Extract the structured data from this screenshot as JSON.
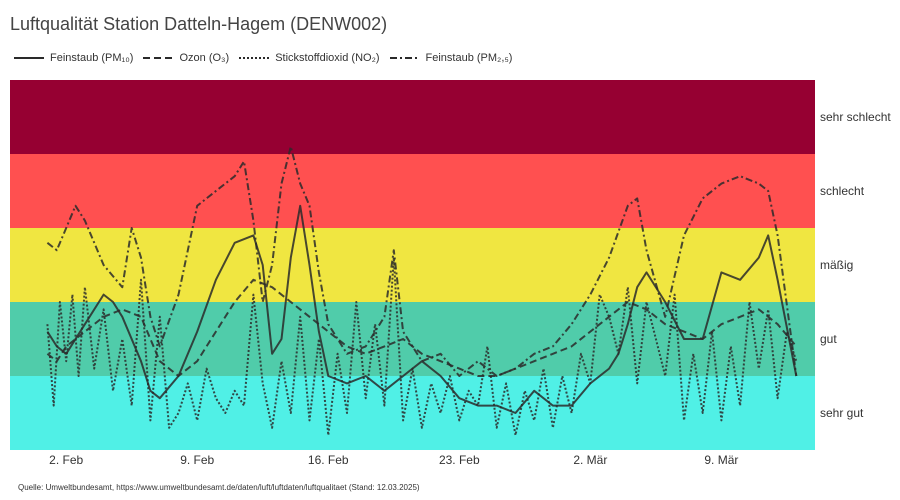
{
  "title": "Luftqualität Station Datteln-Hagem (DENW002)",
  "source": "Quelle: Umweltbundesamt, https://www.umweltbundesamt.de/daten/luft/luftdaten/luftqualitaet (Stand: 12.03.2025)",
  "chart_data": {
    "type": "line",
    "title": "Luftqualität Station Datteln-Hagem (DENW002)",
    "x_axis": {
      "start": "2025-01-30",
      "end": "2025-03-14",
      "tick_labels": [
        "2. Feb",
        "9. Feb",
        "16. Feb",
        "23. Feb",
        "2. Mär",
        "9. Mär"
      ],
      "tick_dates": [
        "2025-02-02",
        "2025-02-09",
        "2025-02-16",
        "2025-02-23",
        "2025-03-02",
        "2025-03-09"
      ]
    },
    "y_axis": {
      "type": "categorical-bands",
      "bands": [
        "sehr gut",
        "gut",
        "mäßig",
        "schlecht",
        "sehr schlecht"
      ],
      "ylim": [
        0,
        5
      ]
    },
    "band_colors": {
      "sehr gut": "#50F0E6",
      "gut": "#50CCAA",
      "mäßig": "#F0E641",
      "schlecht": "#FF5050",
      "sehr schlecht": "#960032"
    },
    "grid": false,
    "legend_position": "top-left",
    "series": [
      {
        "name": "Feinstaub (PM₁₀)",
        "dash": "solid",
        "color": "#2a2a2a",
        "x": [
          "2025-02-01",
          "2025-02-01T12:00",
          "2025-02-02",
          "2025-02-03",
          "2025-02-04",
          "2025-02-04T12:00",
          "2025-02-05",
          "2025-02-06",
          "2025-02-06T12:00",
          "2025-02-07",
          "2025-02-08",
          "2025-02-09",
          "2025-02-10",
          "2025-02-11",
          "2025-02-12",
          "2025-02-12T12:00",
          "2025-02-13",
          "2025-02-13T12:00",
          "2025-02-14",
          "2025-02-14T12:00",
          "2025-02-15",
          "2025-02-15T12:00",
          "2025-02-16",
          "2025-02-17",
          "2025-02-18",
          "2025-02-19",
          "2025-02-20",
          "2025-02-21",
          "2025-02-22",
          "2025-02-23",
          "2025-02-24",
          "2025-02-25",
          "2025-02-26",
          "2025-02-27",
          "2025-02-28",
          "2025-03-01",
          "2025-03-02",
          "2025-03-03",
          "2025-03-03T12:00",
          "2025-03-04",
          "2025-03-04T12:00",
          "2025-03-05",
          "2025-03-06",
          "2025-03-07",
          "2025-03-08",
          "2025-03-09",
          "2025-03-10",
          "2025-03-11",
          "2025-03-11T12:00",
          "2025-03-12",
          "2025-03-13"
        ],
        "y": [
          1.6,
          1.4,
          1.3,
          1.7,
          2.1,
          2.0,
          1.8,
          1.2,
          0.8,
          0.7,
          1.0,
          1.6,
          2.3,
          2.8,
          2.9,
          2.5,
          1.3,
          1.5,
          2.6,
          3.3,
          2.5,
          1.6,
          1.0,
          0.9,
          1.0,
          0.8,
          1.0,
          1.2,
          1.0,
          0.7,
          0.6,
          0.6,
          0.5,
          0.8,
          0.6,
          0.6,
          0.9,
          1.1,
          1.3,
          1.7,
          2.2,
          2.4,
          2.0,
          1.5,
          1.5,
          2.4,
          2.3,
          2.6,
          2.9,
          2.3,
          1.0
        ]
      },
      {
        "name": "Ozon (O₃)",
        "dash": "dashed",
        "color": "#2a2a2a",
        "x": [
          "2025-02-01",
          "2025-02-01T12:00",
          "2025-02-02",
          "2025-02-03",
          "2025-02-04",
          "2025-02-05",
          "2025-02-06",
          "2025-02-06T12:00",
          "2025-02-07",
          "2025-02-08",
          "2025-02-09",
          "2025-02-10",
          "2025-02-11",
          "2025-02-12",
          "2025-02-13",
          "2025-02-14",
          "2025-02-15",
          "2025-02-16",
          "2025-02-17",
          "2025-02-18",
          "2025-02-19",
          "2025-02-20",
          "2025-02-21",
          "2025-02-22",
          "2025-02-23",
          "2025-02-24",
          "2025-02-25",
          "2025-02-26",
          "2025-02-27",
          "2025-02-28",
          "2025-03-01",
          "2025-03-02",
          "2025-03-03",
          "2025-03-04",
          "2025-03-05",
          "2025-03-06",
          "2025-03-07",
          "2025-03-08",
          "2025-03-09",
          "2025-03-10",
          "2025-03-11",
          "2025-03-12",
          "2025-03-13"
        ],
        "y": [
          1.3,
          1.2,
          1.4,
          1.6,
          1.8,
          1.9,
          1.8,
          1.5,
          1.2,
          1.0,
          1.2,
          1.6,
          2.0,
          2.3,
          2.2,
          2.0,
          1.8,
          1.6,
          1.4,
          1.3,
          1.4,
          1.5,
          1.3,
          1.2,
          1.1,
          1.0,
          1.0,
          1.1,
          1.2,
          1.3,
          1.4,
          1.6,
          1.8,
          2.0,
          1.9,
          1.7,
          1.6,
          1.5,
          1.7,
          1.8,
          1.9,
          1.7,
          1.4
        ]
      },
      {
        "name": "Stickstoffdioxid (NO₂)",
        "dash": "dotted",
        "color": "#2a2a2a",
        "x": [
          "2025-02-01",
          "2025-02-01T08:00",
          "2025-02-01T16:00",
          "2025-02-02",
          "2025-02-02T08:00",
          "2025-02-02T16:00",
          "2025-02-03",
          "2025-02-03T12:00",
          "2025-02-04",
          "2025-02-04T12:00",
          "2025-02-05",
          "2025-02-05T12:00",
          "2025-02-06",
          "2025-02-06T12:00",
          "2025-02-07",
          "2025-02-07T12:00",
          "2025-02-08",
          "2025-02-08T12:00",
          "2025-02-09",
          "2025-02-09T12:00",
          "2025-02-10",
          "2025-02-10T12:00",
          "2025-02-11",
          "2025-02-11T12:00",
          "2025-02-12",
          "2025-02-12T12:00",
          "2025-02-13",
          "2025-02-13T12:00",
          "2025-02-14",
          "2025-02-14T12:00",
          "2025-02-15",
          "2025-02-15T12:00",
          "2025-02-16",
          "2025-02-16T12:00",
          "2025-02-17",
          "2025-02-17T12:00",
          "2025-02-18",
          "2025-02-18T12:00",
          "2025-02-19",
          "2025-02-19T12:00",
          "2025-02-20",
          "2025-02-20T12:00",
          "2025-02-21",
          "2025-02-21T12:00",
          "2025-02-22",
          "2025-02-22T12:00",
          "2025-02-23",
          "2025-02-23T12:00",
          "2025-02-24",
          "2025-02-24T12:00",
          "2025-02-25",
          "2025-02-25T12:00",
          "2025-02-26",
          "2025-02-26T12:00",
          "2025-02-27",
          "2025-02-27T12:00",
          "2025-02-28",
          "2025-02-28T12:00",
          "2025-03-01",
          "2025-03-01T12:00",
          "2025-03-02",
          "2025-03-02T12:00",
          "2025-03-03",
          "2025-03-03T12:00",
          "2025-03-04",
          "2025-03-04T12:00",
          "2025-03-05",
          "2025-03-05T12:00",
          "2025-03-06",
          "2025-03-06T12:00",
          "2025-03-07",
          "2025-03-07T12:00",
          "2025-03-08",
          "2025-03-08T12:00",
          "2025-03-09",
          "2025-03-09T12:00",
          "2025-03-10",
          "2025-03-10T12:00",
          "2025-03-11",
          "2025-03-11T12:00",
          "2025-03-12",
          "2025-03-12T12:00",
          "2025-03-13"
        ],
        "y": [
          1.7,
          0.6,
          2.0,
          1.2,
          2.1,
          1.0,
          2.2,
          1.1,
          1.9,
          0.8,
          1.5,
          0.6,
          2.3,
          0.4,
          1.8,
          0.3,
          0.5,
          0.9,
          0.4,
          1.1,
          0.7,
          0.5,
          0.8,
          0.6,
          2.1,
          0.9,
          0.3,
          1.2,
          0.5,
          1.8,
          0.4,
          1.5,
          0.2,
          1.3,
          0.5,
          2.0,
          0.7,
          1.7,
          0.6,
          2.6,
          0.4,
          1.1,
          0.3,
          0.9,
          0.5,
          1.0,
          0.4,
          0.8,
          0.6,
          1.4,
          0.3,
          0.9,
          0.2,
          0.8,
          0.4,
          1.1,
          0.3,
          1.0,
          0.5,
          1.3,
          0.9,
          2.1,
          1.8,
          1.3,
          2.2,
          0.9,
          2.0,
          1.5,
          1.0,
          2.1,
          0.4,
          1.3,
          0.5,
          1.6,
          0.4,
          1.4,
          0.6,
          2.0,
          1.1,
          1.9,
          0.7,
          1.6,
          1.2
        ]
      },
      {
        "name": "Feinstaub (PM₂,₅)",
        "dash": "dashdot",
        "color": "#2a2a2a",
        "x": [
          "2025-02-01",
          "2025-02-01T12:00",
          "2025-02-02",
          "2025-02-02T12:00",
          "2025-02-03",
          "2025-02-04",
          "2025-02-05",
          "2025-02-05T12:00",
          "2025-02-06",
          "2025-02-06T12:00",
          "2025-02-07",
          "2025-02-08",
          "2025-02-09",
          "2025-02-10",
          "2025-02-11",
          "2025-02-11T12:00",
          "2025-02-12",
          "2025-02-12T12:00",
          "2025-02-13",
          "2025-02-13T12:00",
          "2025-02-14",
          "2025-02-14T12:00",
          "2025-02-15",
          "2025-02-15T12:00",
          "2025-02-16",
          "2025-02-17",
          "2025-02-18",
          "2025-02-19",
          "2025-02-19T12:00",
          "2025-02-20",
          "2025-02-21",
          "2025-02-22",
          "2025-02-23",
          "2025-02-24",
          "2025-02-25",
          "2025-02-26",
          "2025-02-27",
          "2025-02-28",
          "2025-03-01",
          "2025-03-02",
          "2025-03-03",
          "2025-03-04",
          "2025-03-04T12:00",
          "2025-03-05",
          "2025-03-06",
          "2025-03-07",
          "2025-03-08",
          "2025-03-09",
          "2025-03-10",
          "2025-03-11",
          "2025-03-11T12:00",
          "2025-03-12",
          "2025-03-13"
        ],
        "y": [
          2.8,
          2.7,
          3.0,
          3.3,
          3.1,
          2.5,
          2.2,
          3.0,
          2.6,
          1.8,
          1.4,
          2.1,
          3.3,
          3.5,
          3.7,
          3.9,
          3.1,
          2.0,
          2.5,
          3.6,
          4.1,
          3.6,
          3.3,
          2.4,
          1.7,
          1.3,
          1.4,
          1.8,
          2.7,
          1.6,
          1.2,
          1.3,
          1.0,
          1.2,
          1.0,
          1.1,
          1.3,
          1.4,
          1.7,
          2.1,
          2.6,
          3.3,
          3.4,
          2.7,
          1.8,
          2.9,
          3.4,
          3.6,
          3.7,
          3.6,
          3.5,
          2.9,
          1.0
        ]
      }
    ]
  }
}
